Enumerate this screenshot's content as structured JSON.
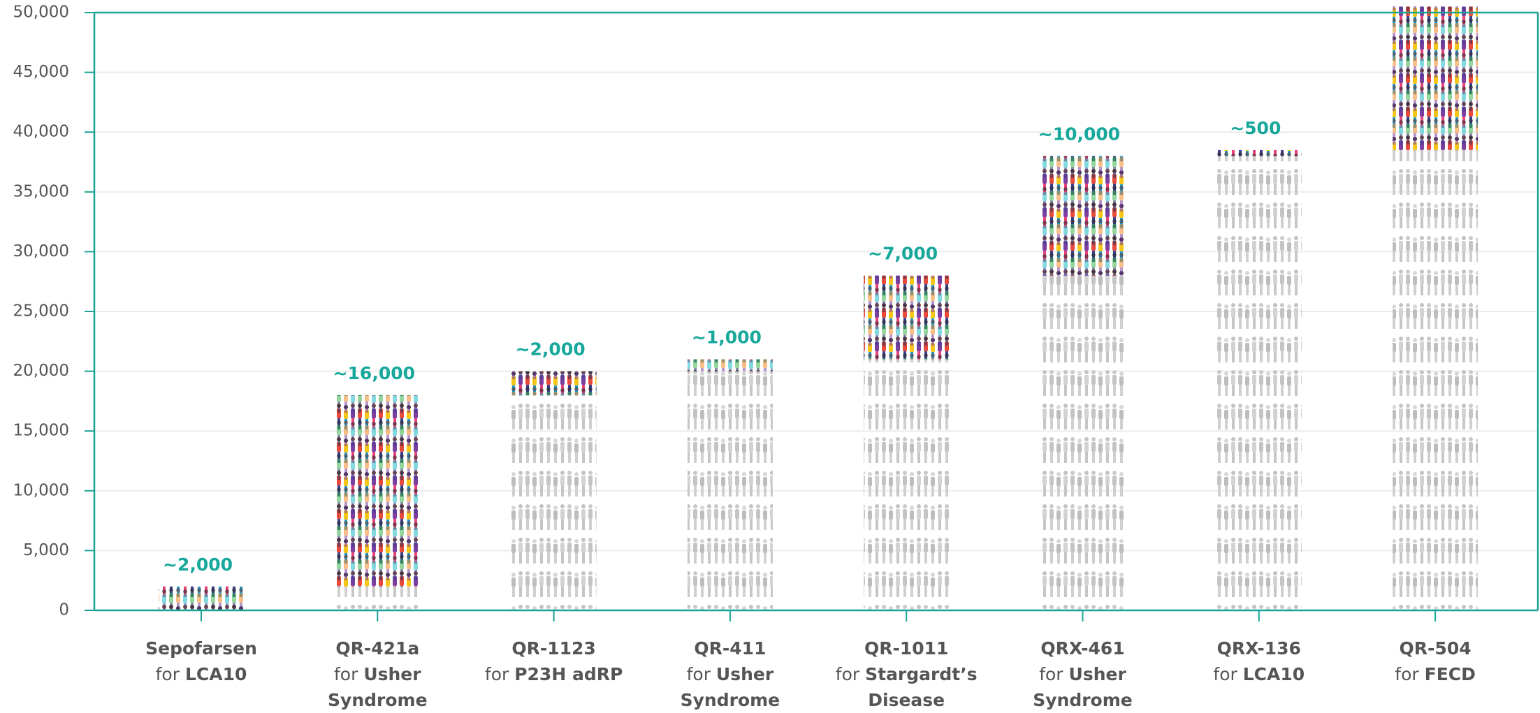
{
  "chart_data": {
    "type": "waterfall",
    "categories": [
      "Sepofarsen",
      "QR-421a",
      "QR-1123",
      "QR-411",
      "QR-1011",
      "QRX-461",
      "QRX-136",
      "QR-504"
    ],
    "target_prefix": "for",
    "targets": [
      "LCA10",
      "Usher Syndrome",
      "P23H adRP",
      "Usher Syndrome",
      "Stargardt’s Disease",
      "Usher Syndrome",
      "LCA10",
      "FECD"
    ],
    "values": [
      2000,
      16000,
      2000,
      1000,
      7000,
      10000,
      500,
      12000
    ],
    "value_labels": [
      "~2,000",
      "~16,000",
      "~2,000",
      "~1,000",
      "~7,000",
      "~10,000",
      "~500",
      null
    ],
    "ylim": [
      0,
      50000
    ],
    "yticks": [
      {
        "value": 0,
        "label": "0"
      },
      {
        "value": 5000,
        "label": "5,000"
      },
      {
        "value": 10000,
        "label": "10,000"
      },
      {
        "value": 15000,
        "label": "15,000"
      },
      {
        "value": 20000,
        "label": "20,000"
      },
      {
        "value": 25000,
        "label": "25,000"
      },
      {
        "value": 30000,
        "label": "30,000"
      },
      {
        "value": 35000,
        "label": "35,000"
      },
      {
        "value": 40000,
        "label": "40,000"
      },
      {
        "value": 45000,
        "label": "45,000"
      },
      {
        "value": 50000,
        "label": "50,000"
      }
    ],
    "grid": true,
    "axis_color": "#1aa394",
    "label_color": "#17a89b"
  }
}
